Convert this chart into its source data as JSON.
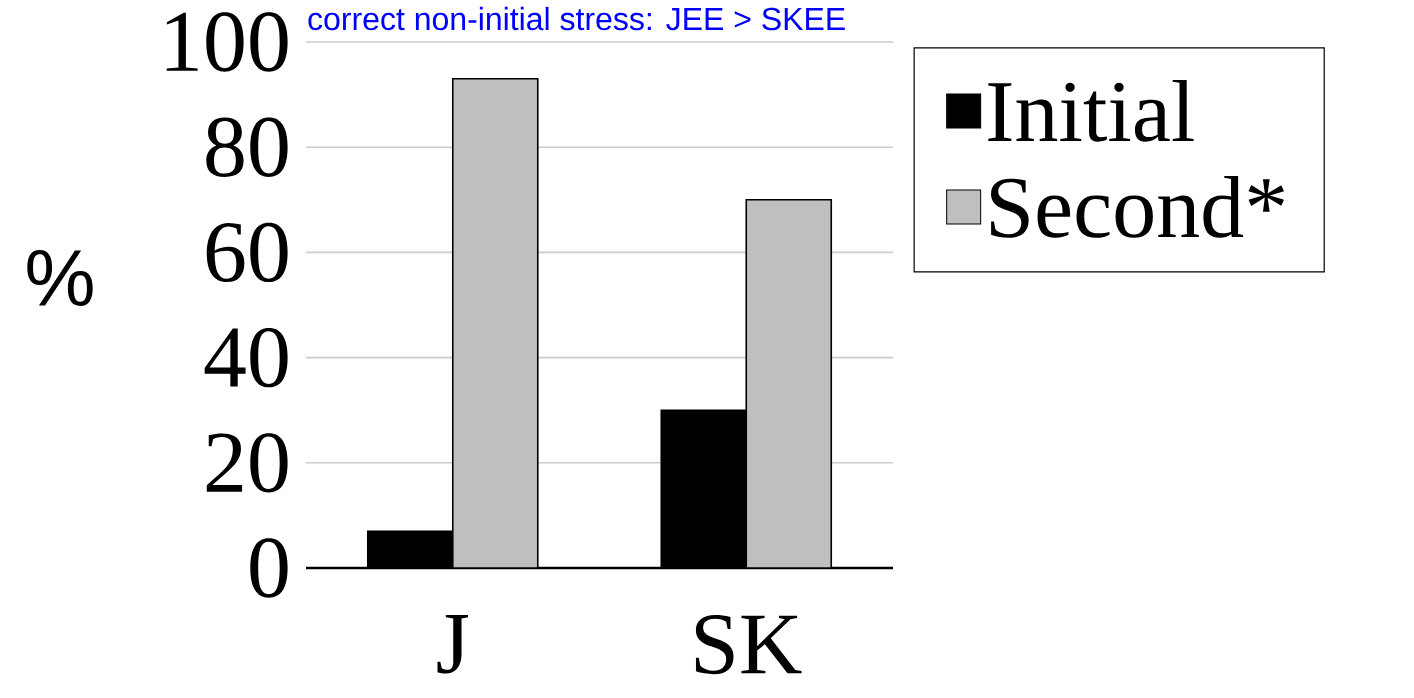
{
  "chart_data": {
    "type": "bar",
    "title": "correct non-initial stress: JEE > SKEE",
    "ylabel": "%",
    "categories": [
      "J",
      "SK"
    ],
    "series": [
      {
        "name": "Initial",
        "color": "#000000",
        "values": [
          7,
          30
        ]
      },
      {
        "name": "Second*",
        "color": "#bfbfbf",
        "values": [
          93,
          70
        ]
      }
    ],
    "ylim": [
      0,
      100
    ],
    "yticks": [
      0,
      20,
      40,
      60,
      80,
      100
    ],
    "grid": "y",
    "legend": "top right"
  }
}
